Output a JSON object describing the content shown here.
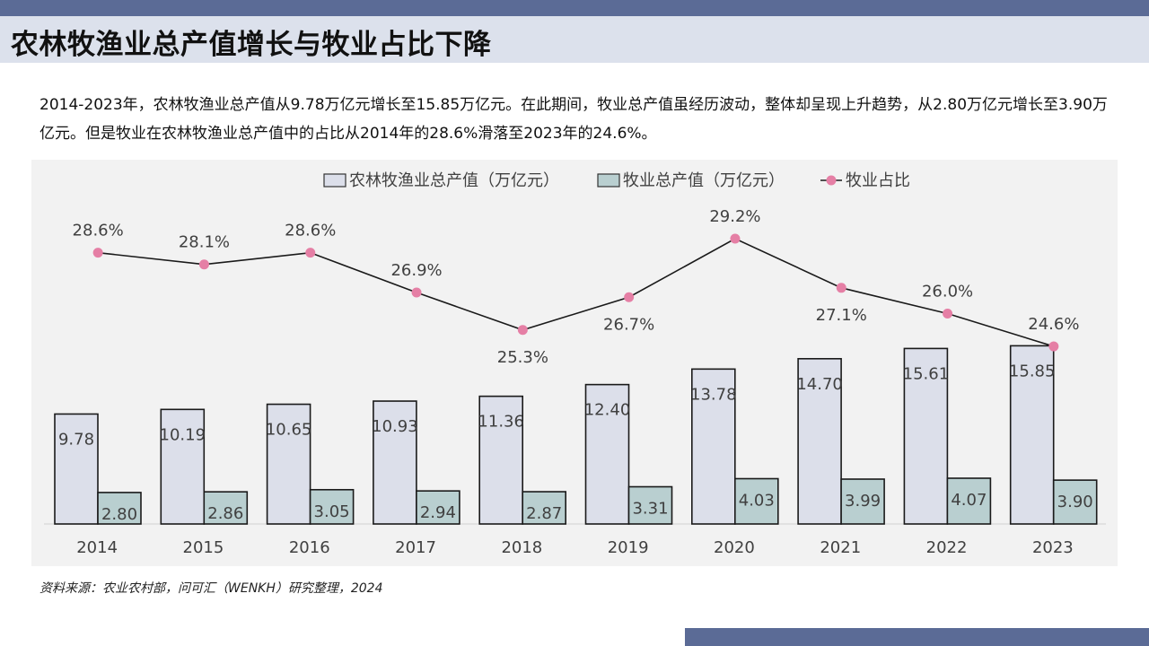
{
  "title": "农林牧渔业总产值增长与牧业占比下降",
  "summary": "2014-2023年，农林牧渔业总产值从9.78万亿元增长至15.85万亿元。在此期间，牧业总产值虽经历波动，整体却呈现上升趋势，从2.80万亿元增长至3.90万亿元。但是牧业在农林牧渔业总产值中的占比从2014年的28.6%滑落至2023年的24.6%。",
  "source": "资料来源：农业农村部，问可汇（WENKH）研究整理，2024",
  "chart_data": {
    "type": "bar",
    "categories": [
      "2014",
      "2015",
      "2016",
      "2017",
      "2018",
      "2019",
      "2020",
      "2021",
      "2022",
      "2023"
    ],
    "series": [
      {
        "name": "农林牧渔业总产值（万亿元）",
        "type": "bar",
        "color": "#dcdfea",
        "values": [
          9.78,
          10.19,
          10.65,
          10.93,
          11.36,
          12.4,
          13.78,
          14.7,
          15.61,
          15.85
        ],
        "labels": [
          "9.78",
          "10.19",
          "10.65",
          "10.93",
          "11.36",
          "12.40",
          "13.78",
          "14.70",
          "15.61",
          "15.85"
        ]
      },
      {
        "name": "牧业总产值（万亿元）",
        "type": "bar",
        "color": "#b9cfd0",
        "values": [
          2.8,
          2.86,
          3.05,
          2.94,
          2.87,
          3.31,
          4.03,
          3.99,
          4.07,
          3.9
        ],
        "labels": [
          "2.80",
          "2.86",
          "3.05",
          "2.94",
          "2.87",
          "3.31",
          "4.03",
          "3.99",
          "4.07",
          "3.90"
        ]
      },
      {
        "name": "牧业占比",
        "type": "line",
        "color": "#e57fa5",
        "values": [
          28.6,
          28.1,
          28.6,
          26.9,
          25.3,
          26.7,
          29.2,
          27.1,
          26.0,
          24.6
        ],
        "labels": [
          "28.6%",
          "28.1%",
          "28.6%",
          "26.9%",
          "25.3%",
          "26.7%",
          "29.2%",
          "27.1%",
          "26.0%",
          "24.6%"
        ]
      }
    ],
    "legend_position": "top",
    "grid": false
  }
}
